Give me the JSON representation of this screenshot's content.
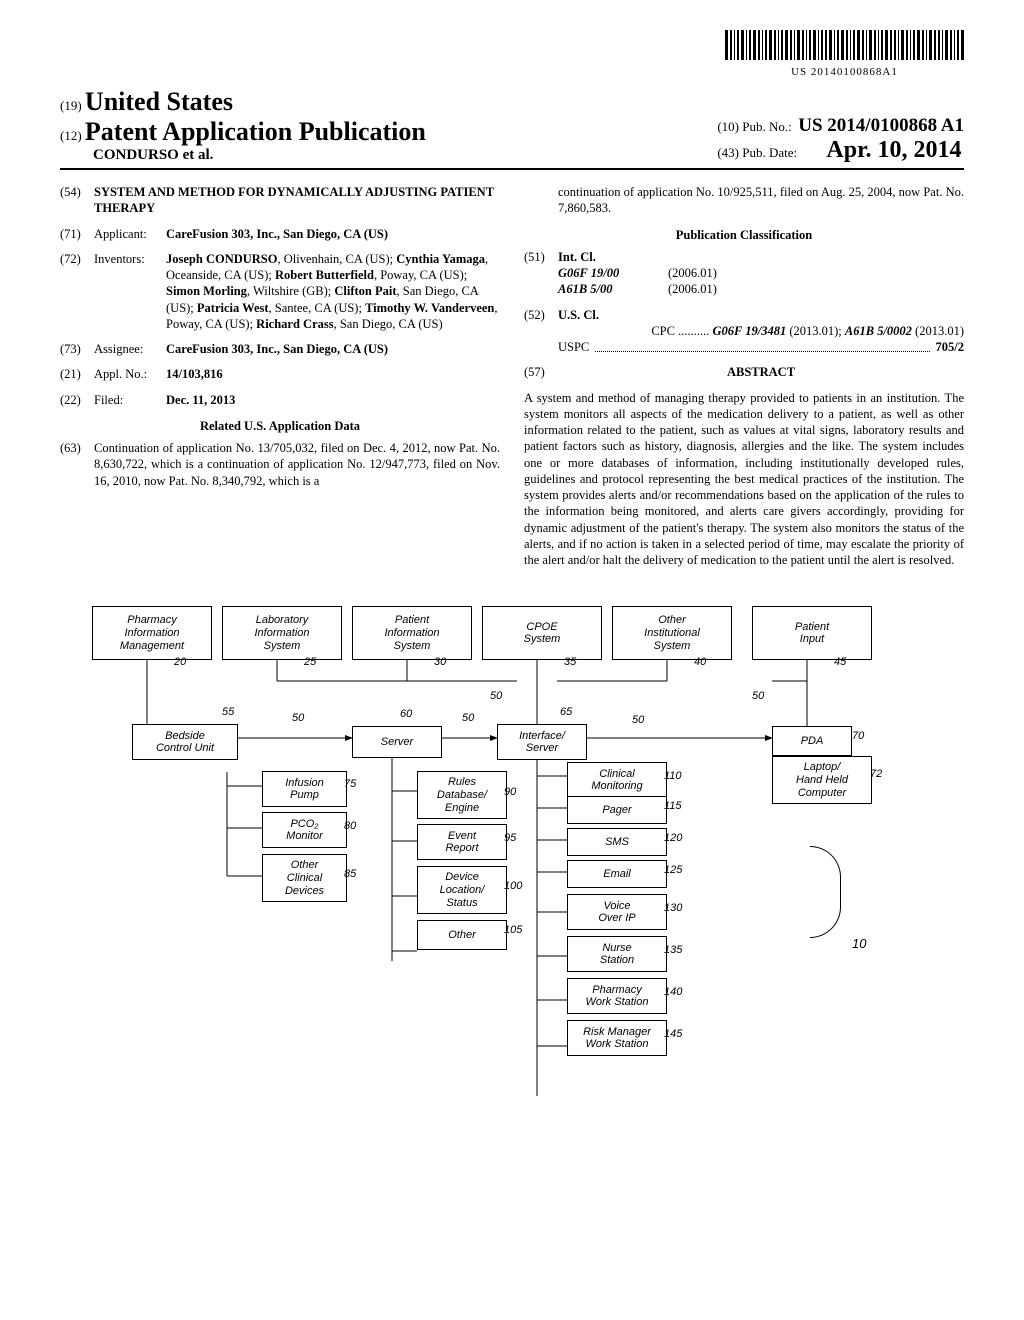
{
  "barcode_text": "US 20140100868A1",
  "country": "United States",
  "doc_type_line1": "Patent Application Publication",
  "authors_line": "CONDURSO et al.",
  "pub_no_label": "Pub. No.:",
  "pub_no": "US 2014/0100868 A1",
  "pub_date_label": "Pub. Date:",
  "pub_date": "Apr. 10, 2014",
  "title": "SYSTEM AND METHOD FOR DYNAMICALLY ADJUSTING PATIENT THERAPY",
  "applicant": "CareFusion 303, Inc., San Diego, CA (US)",
  "inventors": "Joseph CONDURSO, Olivenhain, CA (US); Cynthia Yamaga, Oceanside, CA (US); Robert Butterfield, Poway, CA (US); Simon Morling, Wiltshire (GB); Clifton Pait, San Diego, CA (US); Patricia West, Santee, CA (US); Timothy W. Vanderveen, Poway, CA (US); Richard Crass, San Diego, CA (US)",
  "assignee": "CareFusion 303, Inc., San Diego, CA (US)",
  "appl_no": "14/103,816",
  "filed": "Dec. 11, 2013",
  "related_heading": "Related U.S. Application Data",
  "continuation_1": "Continuation of application No. 13/705,032, filed on Dec. 4, 2012, now Pat. No. 8,630,722, which is a continuation of application No. 12/947,773, filed on Nov. 16, 2010, now Pat. No. 8,340,792, which is a",
  "continuation_2": "continuation of application No. 10/925,511, filed on Aug. 25, 2004, now Pat. No. 7,860,583.",
  "pub_class_heading": "Publication Classification",
  "intcl_label": "Int. Cl.",
  "intcl_1_code": "G06F 19/00",
  "intcl_1_date": "(2006.01)",
  "intcl_2_code": "A61B 5/00",
  "intcl_2_date": "(2006.01)",
  "uscl_label": "U.S. Cl.",
  "cpc_line": "CPC .......... G06F 19/3481 (2013.01); A61B 5/0002 (2013.01)",
  "uspc_label": "USPC",
  "uspc_value": "705/2",
  "abstract_heading": "ABSTRACT",
  "abstract": "A system and method of managing therapy provided to patients in an institution. The system monitors all aspects of the medication delivery to a patient, as well as other information related to the patient, such as values at vital signs, laboratory results and patient factors such as history, diagnosis, allergies and the like. The system includes one or more databases of information, including institutionally developed rules, guidelines and protocol representing the best medical practices of the institution. The system provides alerts and/or recommendations based on the application of the rules to the information being monitored, and alerts care givers accordingly, providing for dynamic adjustment of the patient's therapy. The system also monitors the status of the alerts, and if no action is taken in a selected period of time, may escalate the priority of the alert and/or halt the delivery of medication to the patient until the alert is resolved.",
  "inid": {
    "country": "(19)",
    "doctype": "(12)",
    "title": "(54)",
    "applicant": "(71)",
    "inventors": "(72)",
    "assignee": "(73)",
    "applno": "(21)",
    "filed": "(22)",
    "pubno": "(10)",
    "pubdate": "(43)",
    "intcl": "(51)",
    "uscl": "(52)",
    "continuation": "(63)",
    "abstract": "(57)"
  },
  "labels": {
    "applicant": "Applicant:",
    "inventors": "Inventors:",
    "assignee": "Assignee:",
    "applno": "Appl. No.:",
    "filed": "Filed:"
  },
  "fig": {
    "top": {
      "pharmacy": "Pharmacy\nInformation\nManagement",
      "laboratory": "Laboratory\nInformation\nSystem",
      "patient_info": "Patient\nInformation\nSystem",
      "cpoe": "CPOE\nSystem",
      "other_inst": "Other\nInstitutional\nSystem",
      "patient_input": "Patient\nInput"
    },
    "top_refs": {
      "pharmacy": "20",
      "laboratory": "25",
      "patient_info": "30",
      "cpoe": "35",
      "other_inst": "40",
      "patient_input": "45"
    },
    "mid": {
      "bedside": "Bedside\nControl Unit",
      "server": "Server",
      "interface": "Interface/\nServer",
      "pda": "PDA",
      "laptop": "Laptop/\nHand Held\nComputer"
    },
    "mid_refs": {
      "bedside": "55",
      "server": "60",
      "interface": "65",
      "pda": "70",
      "laptop": "72",
      "link": "50"
    },
    "left_stack": {
      "infusion": "Infusion\nPump",
      "pco2": "PCO₂\nMonitor",
      "other_dev": "Other\nClinical\nDevices"
    },
    "left_stack_refs": {
      "infusion": "75",
      "pco2": "80",
      "other_dev": "85"
    },
    "center_stack": {
      "rules": "Rules\nDatabase/\nEngine",
      "event": "Event\nReport",
      "device_loc": "Device\nLocation/\nStatus",
      "other": "Other"
    },
    "center_stack_refs": {
      "rules": "90",
      "event": "95",
      "device_loc": "100",
      "other": "105"
    },
    "right_stack": {
      "clinical": "Clinical\nMonitoring",
      "pager": "Pager",
      "sms": "SMS",
      "email": "Email",
      "voice": "Voice\nOver IP",
      "nurse": "Nurse\nStation",
      "pharmacy_ws": "Pharmacy\nWork Station",
      "risk": "Risk Manager\nWork Station"
    },
    "right_stack_refs": {
      "clinical": "110",
      "pager": "115",
      "sms": "120",
      "email": "125",
      "voice": "130",
      "nurse": "135",
      "pharmacy_ws": "140",
      "risk": "145"
    },
    "system_ref": "10"
  }
}
